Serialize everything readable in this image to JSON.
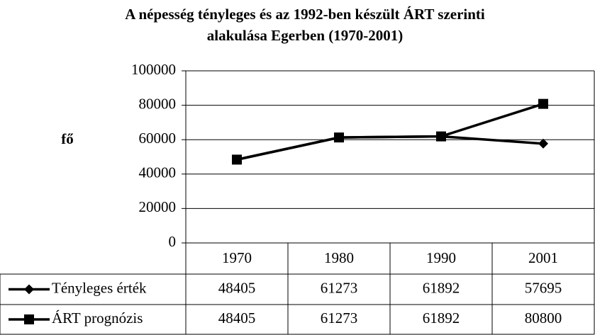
{
  "chart_data": {
    "type": "line",
    "title": "A népesség tényleges és az 1992-ben készült ÁRT szerinti",
    "subtitle": "alakulása Egerben (1970-2001)",
    "y_label": "fő",
    "categories": [
      "1970",
      "1980",
      "1990",
      "2001"
    ],
    "series": [
      {
        "name": "Tényleges érték",
        "color": "#000000",
        "marker": "diamond",
        "values": [
          48405,
          61273,
          61892,
          57695
        ]
      },
      {
        "name": "ÁRT prognózis",
        "color": "#000000",
        "marker": "square",
        "values": [
          48405,
          61273,
          61892,
          80800
        ]
      }
    ],
    "ylim": [
      0,
      100000
    ],
    "yticks": [
      0,
      20000,
      40000,
      60000,
      80000,
      100000
    ],
    "grid": true,
    "data_table": true
  }
}
